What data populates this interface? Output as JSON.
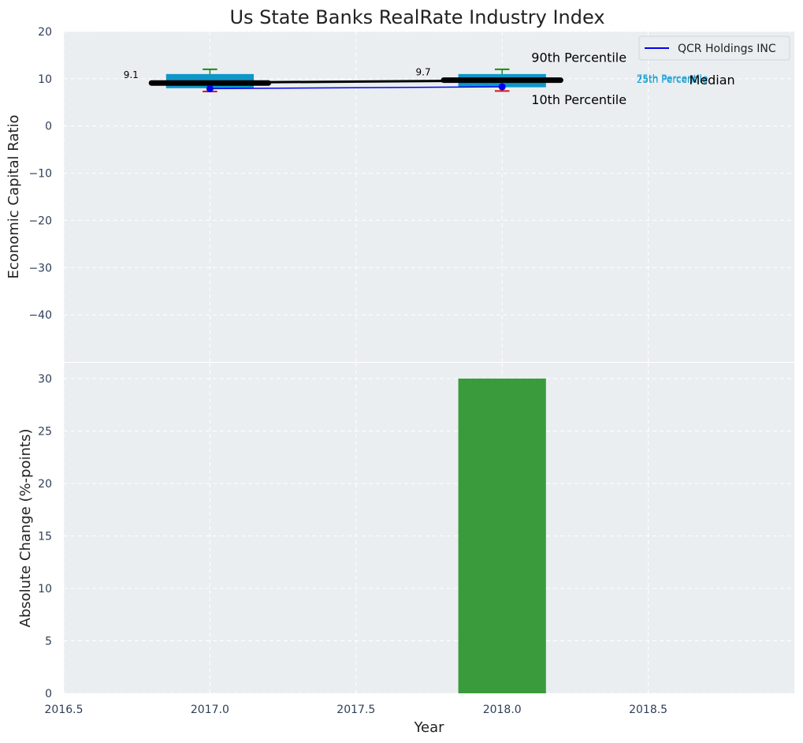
{
  "colors": {
    "panel_bg": "#eaeef0",
    "grid": "#ffffff",
    "box": "#0e97c8",
    "whisker_top": "#1a8a1a",
    "whisker_bottom": "#e01010",
    "company_line": "#0000ee",
    "median_line": "#000000",
    "bar": "#3a9b3c",
    "tiny_label": "#1a9fd0"
  },
  "chart_data": [
    {
      "type": "box",
      "title": "Us State Banks RealRate Industry Index",
      "ylabel": "Economic Capital Ratio",
      "xlim": [
        2016.5,
        2019.0
      ],
      "ylim": [
        -50,
        20
      ],
      "yticks": [
        20,
        10,
        0,
        -10,
        -20,
        -30,
        -40
      ],
      "ytick_labels": [
        "20",
        "10",
        "0",
        "−10",
        "−20",
        "−30",
        "−40"
      ],
      "boxes": [
        {
          "year": 2017.0,
          "p10": 7.3,
          "p25": 8.0,
          "median": 9.1,
          "p75": 11.0,
          "p90": 12.0,
          "median_label": "9.1"
        },
        {
          "year": 2018.0,
          "p10": 7.4,
          "p25": 8.2,
          "median": 9.7,
          "p75": 11.0,
          "p90": 12.0,
          "median_label": "9.7"
        }
      ],
      "company": {
        "name": "QCR Holdings INC",
        "x": [
          2017.0,
          2018.0
        ],
        "y": [
          7.9,
          8.3
        ]
      },
      "legend": {
        "label": "QCR Holdings INC",
        "position": "top-right"
      },
      "annotations": {
        "p90": "90th Percentile",
        "p10": "10th Percentile",
        "median": "Median",
        "p75": "75th Percentile",
        "p25": "25th Percentile"
      }
    },
    {
      "type": "bar",
      "ylabel": "Absolute Change (%-points)",
      "xlabel": "Year",
      "xlim": [
        2016.5,
        2019.0
      ],
      "ylim": [
        0,
        31.5
      ],
      "yticks": [
        0,
        5,
        10,
        15,
        20,
        25,
        30
      ],
      "ytick_labels": [
        "0",
        "5",
        "10",
        "15",
        "20",
        "25",
        "30"
      ],
      "xticks": [
        2016.5,
        2017.0,
        2017.5,
        2018.0,
        2018.5
      ],
      "xtick_labels": [
        "2016.5",
        "2017.0",
        "2017.5",
        "2018.0",
        "2018.5"
      ],
      "bars": [
        {
          "x": 2018.0,
          "value": 30
        }
      ]
    }
  ]
}
